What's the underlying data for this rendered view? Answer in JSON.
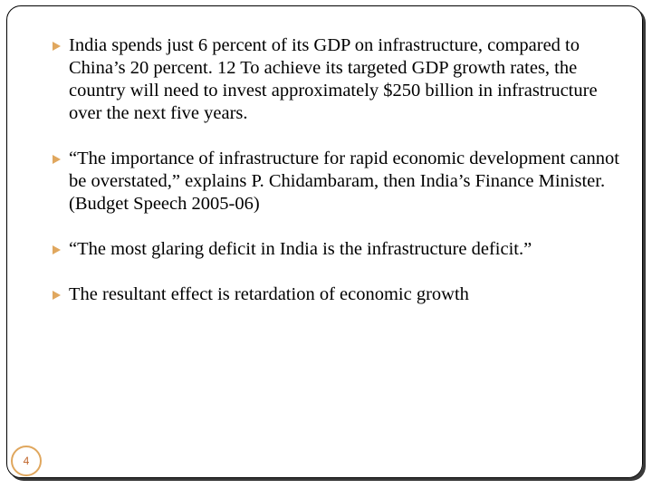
{
  "slide": {
    "bullets": [
      {
        "text": "India spends just 6 percent of its GDP on infrastructure, compared to China’s 20 percent. 12 To achieve its targeted GDP growth rates, the country will need to invest approximately $250 billion in infrastructure over the next five years."
      },
      {
        "text": "“The importance of infrastructure for rapid economic development cannot be overstated,” explains P. Chidambaram, then India’s Finance Minister. (Budget Speech 2005-06)"
      },
      {
        "text": "“The most glaring deficit in India is the infrastructure deficit.”"
      },
      {
        "text": "The resultant effect is retardation of economic growth"
      }
    ],
    "page_number": "4",
    "bullet_icon": "arrow-triangle-icon",
    "colors": {
      "accent": "#e0a75e",
      "page_number_text": "#c0652a",
      "border": "#000000",
      "text": "#000000"
    }
  }
}
